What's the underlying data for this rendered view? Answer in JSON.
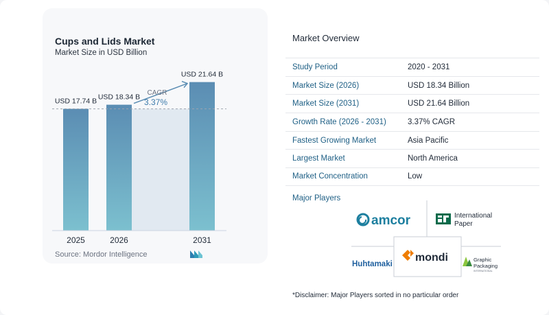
{
  "chart_data": {
    "type": "bar",
    "title": "Cups and Lids Market",
    "subtitle": "Market Size in USD Billion",
    "categories": [
      "2025",
      "2026",
      "2031"
    ],
    "values": [
      17.74,
      18.34,
      21.64
    ],
    "value_labels": [
      "USD 17.74 B",
      "USD 18.34 B",
      "USD 21.64 B"
    ],
    "cagr_label": "CAGR",
    "cagr_value": "3.37%",
    "bar_color": "#5b8db3",
    "bar_gradient_bottom": "#7cc0cf",
    "projection_band_color": "#e1e9f1"
  },
  "source_text": "Source:  Mordor Intelligence",
  "overview": {
    "title": "Market Overview",
    "rows": [
      {
        "label": "Study Period",
        "value": "2020 - 2031"
      },
      {
        "label": "Market Size (2026)",
        "value": "USD 18.34 Billion"
      },
      {
        "label": "Market Size (2031)",
        "value": "USD 21.64 Billion"
      },
      {
        "label": "Growth Rate (2026 - 2031)",
        "value": "3.37% CAGR"
      },
      {
        "label": "Fastest Growing Market",
        "value": "Asia Pacific"
      },
      {
        "label": "Largest Market",
        "value": "North America"
      },
      {
        "label": "Market Concentration",
        "value": "Low"
      }
    ]
  },
  "players": {
    "title": "Major Players",
    "logos": {
      "amcor": "amcor",
      "ip_line1": "International",
      "ip_line2": "Paper",
      "huhtamaki": "Huhtamaki",
      "mondi": "mondi",
      "gp_line1": "Graphic",
      "gp_line2": "Packaging",
      "gp_line3": "INTERNATIONAL"
    }
  },
  "disclaimer": "*Disclaimer: Major Players sorted in no particular order",
  "colors": {
    "accent_blue": "#1e5f85",
    "mondi_orange": "#ef7d00",
    "amcor_teal": "#1d7f9f",
    "ip_green": "#0b6b4b"
  }
}
